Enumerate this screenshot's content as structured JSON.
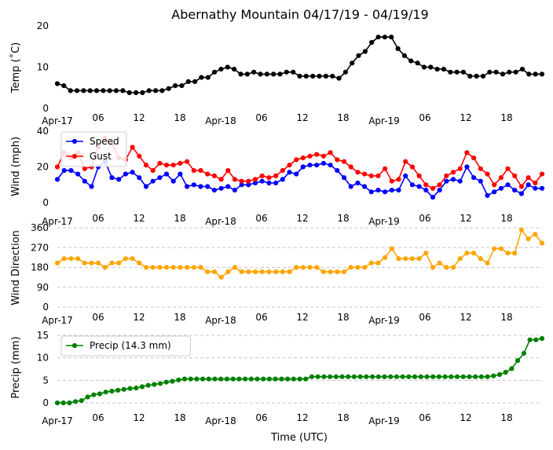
{
  "title": "Abernathy Mountain 04/17/19 - 04/19/19",
  "xlabel": "Time (UTC)",
  "x_tick_labels": [
    "Apr-17",
    "06",
    "12",
    "18",
    "Apr-18",
    "06",
    "12",
    "18",
    "Apr-19",
    "06",
    "12",
    "18"
  ],
  "chart_data": [
    {
      "type": "line",
      "ylabel": "Temp (˚C)",
      "ylim": [
        0,
        20
      ],
      "yticks": [
        0,
        10,
        20
      ],
      "grid": false,
      "series": [
        {
          "color": "#000000",
          "values": [
            6,
            5.5,
            4.3,
            4.3,
            4.3,
            4.3,
            4.3,
            4.3,
            4.3,
            4.3,
            4.3,
            3.8,
            3.8,
            3.8,
            4.3,
            4.3,
            4.3,
            4.8,
            5.5,
            5.5,
            6.5,
            6.5,
            7.5,
            7.5,
            8.8,
            9.5,
            10,
            9.5,
            8.3,
            8.3,
            8.8,
            8.3,
            8.3,
            8.3,
            8.3,
            8.8,
            8.8,
            7.8,
            7.8,
            7.8,
            7.8,
            7.8,
            7.8,
            7.3,
            8.8,
            11,
            12.8,
            13.8,
            16,
            17.3,
            17.3,
            17.3,
            14.5,
            12.8,
            11.5,
            11,
            10,
            10,
            9.5,
            9.5,
            8.8,
            8.8,
            8.8,
            7.8,
            7.8,
            7.8,
            8.8,
            8.8,
            8.3,
            8.8,
            8.8,
            9.5,
            8.3,
            8.3,
            8.3
          ]
        }
      ]
    },
    {
      "type": "line",
      "ylabel": "Wind (mph)",
      "ylim": [
        0,
        40
      ],
      "yticks": [
        0,
        20,
        40
      ],
      "grid": false,
      "legend": "top-left",
      "series": [
        {
          "name": "Speed",
          "color": "#0000ff",
          "values": [
            13,
            18,
            18,
            16,
            12,
            9,
            20,
            23,
            14,
            13,
            16,
            17,
            14,
            9,
            12,
            14,
            16,
            12,
            16,
            9,
            10,
            9,
            9,
            7,
            8,
            9,
            7,
            10,
            10,
            11,
            12,
            11,
            11,
            13,
            17,
            16,
            20,
            21,
            21,
            22,
            21,
            18,
            14,
            9,
            11,
            9,
            6,
            7,
            6,
            7,
            7,
            15,
            10,
            9,
            7,
            3,
            7,
            12,
            13,
            12,
            20,
            14,
            12,
            4,
            6,
            8,
            10,
            7,
            5,
            10,
            8,
            8
          ]
        },
        {
          "name": "Gust",
          "color": "#ff0000",
          "values": [
            20,
            28,
            25,
            28,
            19,
            20,
            31,
            36,
            33,
            25,
            24,
            31,
            26,
            21,
            18,
            22,
            21,
            21,
            22,
            23,
            18,
            18,
            16,
            15,
            13,
            18,
            13,
            12,
            12,
            13,
            15,
            14,
            15,
            18,
            21,
            24,
            25,
            26,
            27,
            26,
            28,
            24,
            23,
            20,
            17,
            16,
            15,
            15,
            19,
            12,
            13,
            23,
            20,
            15,
            10,
            8,
            10,
            15,
            17,
            19,
            28,
            25,
            19,
            16,
            10,
            14,
            19,
            15,
            9,
            14,
            11,
            16
          ]
        }
      ]
    },
    {
      "type": "line",
      "ylabel": "Wind Direction",
      "ylim": [
        0,
        360
      ],
      "yticks": [
        0,
        90,
        180,
        270,
        360
      ],
      "grid": true,
      "series": [
        {
          "color": "#ffa500",
          "values": [
            200,
            220,
            220,
            220,
            200,
            200,
            200,
            180,
            200,
            200,
            220,
            220,
            200,
            180,
            180,
            180,
            180,
            180,
            180,
            180,
            180,
            180,
            160,
            160,
            135,
            160,
            180,
            160,
            160,
            160,
            160,
            160,
            160,
            160,
            160,
            180,
            180,
            180,
            180,
            160,
            160,
            160,
            160,
            180,
            180,
            180,
            200,
            200,
            225,
            265,
            220,
            220,
            220,
            220,
            245,
            180,
            200,
            180,
            180,
            220,
            245,
            245,
            220,
            200,
            265,
            265,
            245,
            245,
            350,
            310,
            330,
            290
          ]
        }
      ]
    },
    {
      "type": "line",
      "ylabel": "Precip (mm)",
      "ylim": [
        0,
        15
      ],
      "yticks": [
        0,
        5,
        10,
        15
      ],
      "grid": true,
      "legend": "top-left",
      "series": [
        {
          "name": "Precip (14.3 mm)",
          "color": "#008000",
          "values": [
            0,
            0,
            0,
            0.3,
            0.5,
            1.3,
            1.8,
            2,
            2.4,
            2.6,
            2.8,
            3,
            3.2,
            3.3,
            3.6,
            3.9,
            4.1,
            4.3,
            4.6,
            4.8,
            5.1,
            5.3,
            5.3,
            5.3,
            5.3,
            5.3,
            5.3,
            5.3,
            5.3,
            5.3,
            5.3,
            5.3,
            5.3,
            5.3,
            5.3,
            5.3,
            5.3,
            5.3,
            5.3,
            5.3,
            5.3,
            5.3,
            5.8,
            5.8,
            5.8,
            5.8,
            5.8,
            5.8,
            5.8,
            5.8,
            5.8,
            5.8,
            5.8,
            5.8,
            5.8,
            5.8,
            5.8,
            5.8,
            5.8,
            5.8,
            5.8,
            5.8,
            5.8,
            5.8,
            5.8,
            5.8,
            5.8,
            5.8,
            5.8,
            5.8,
            5.8,
            5.8,
            6,
            6.3,
            6.8,
            7.6,
            9.4,
            11,
            14,
            14,
            14.3
          ]
        }
      ]
    }
  ]
}
